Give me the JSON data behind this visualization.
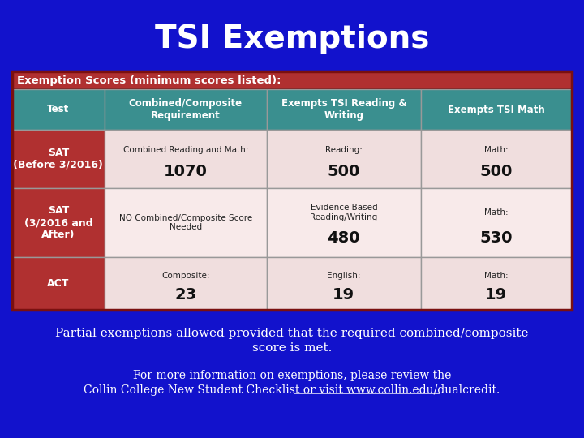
{
  "title": "TSI Exemptions",
  "bg_color": "#1212cc",
  "title_color": "#ffffff",
  "table_header_main_bg": "#b03030",
  "table_header_main_text": "Exemption Scores (minimum scores listed):",
  "col_header_bg": "#3a8f8f",
  "col_header_text_color": "#ffffff",
  "col_headers": [
    "Test",
    "Combined/Composite\nRequirement",
    "Exempts TSI Reading &\nWriting",
    "Exempts TSI Math"
  ],
  "row_label_bg": "#b03030",
  "row_label_text_color": "#ffffff",
  "row1_bg": "#f0dede",
  "row2_bg": "#f8eaea",
  "row3_bg": "#f0dede",
  "rows": [
    {
      "label": "SAT\n(Before 3/2016)",
      "col2_small": "Combined Reading and Math:",
      "col2_big": "1070",
      "col3_small": "Reading:",
      "col3_big": "500",
      "col4_small": "Math:",
      "col4_big": "500"
    },
    {
      "label": "SAT\n(3/2016 and\nAfter)",
      "col2_small": "NO Combined/Composite Score\nNeeded",
      "col2_big": "",
      "col3_small": "Evidence Based\nReading/Writing",
      "col3_big": "480",
      "col4_small": "Math:",
      "col4_big": "530"
    },
    {
      "label": "ACT",
      "col2_small": "Composite:",
      "col2_big": "23",
      "col3_small": "English:",
      "col3_big": "19",
      "col4_small": "Math:",
      "col4_big": "19"
    }
  ],
  "footer1": "Partial exemptions allowed provided that the required combined/composite",
  "footer2": "score is met.",
  "footer3": "For more information on exemptions, please review the",
  "footer4": "Collin College New Student Checklist or visit www.collin.edu/dualcredit.",
  "footer_color": "#ffffff",
  "border_color": "#7a1010",
  "grid_color": "#999999"
}
